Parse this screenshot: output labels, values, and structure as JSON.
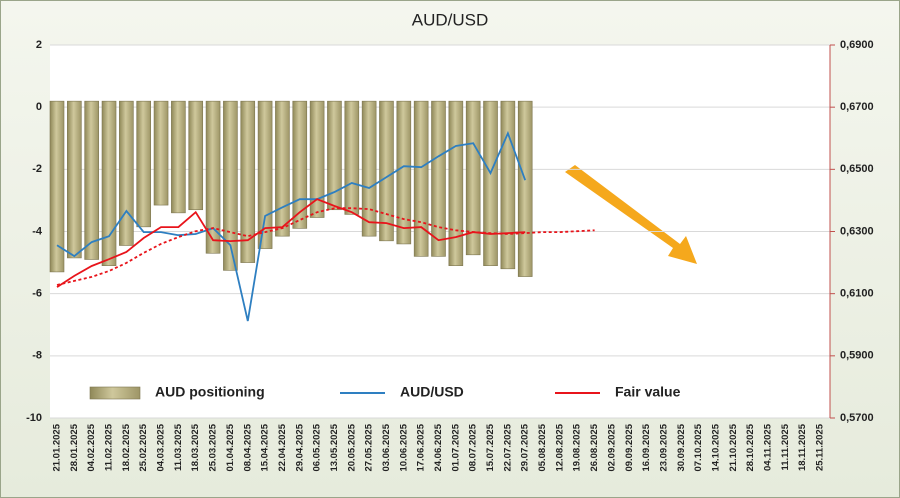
{
  "chart_data": {
    "type": "bar-line",
    "title": "AUD/USD",
    "categories": [
      "21.01.2025",
      "28.01.2025",
      "04.02.2025",
      "11.02.2025",
      "18.02.2025",
      "25.02.2025",
      "04.03.2025",
      "11.03.2025",
      "18.03.2025",
      "25.03.2025",
      "01.04.2025",
      "08.04.2025",
      "15.04.2025",
      "22.04.2025",
      "29.04.2025",
      "06.05.2025",
      "13.05.2025",
      "20.05.2025",
      "27.05.2025",
      "03.06.2025",
      "10.06.2025",
      "17.06.2025",
      "24.06.2025",
      "01.07.2025",
      "08.07.2025",
      "15.07.2025",
      "22.07.2025",
      "29.07.2025",
      "05.08.2025",
      "12.08.2025",
      "19.08.2025",
      "26.08.2025",
      "02.09.2025",
      "09.09.2025",
      "16.09.2025",
      "23.09.2025",
      "30.09.2025",
      "07.10.2025",
      "14.10.2025",
      "21.10.2025",
      "28.10.2025",
      "04.11.2025",
      "11.11.2025",
      "18.11.2025",
      "25.11.2025"
    ],
    "ylim": [
      -10,
      2
    ],
    "yticks": [
      2,
      0,
      -2,
      -4,
      -6,
      -8,
      -10
    ],
    "y2lim": [
      0.57,
      0.69
    ],
    "y2ticks": [
      {
        "value": 0.69,
        "label": "0,6900"
      },
      {
        "value": 0.67,
        "label": "0,6700"
      },
      {
        "value": 0.65,
        "label": "0,6500"
      },
      {
        "value": 0.63,
        "label": "0,6300"
      },
      {
        "value": 0.61,
        "label": "0,6100"
      },
      {
        "value": 0.59,
        "label": "0,5900"
      },
      {
        "value": 0.57,
        "label": "0,5700"
      }
    ],
    "grid": true,
    "legend": "bottom",
    "series": [
      {
        "name": "AUD positioning",
        "kind": "bar",
        "color": "#b3ab7a",
        "axis": "y",
        "values": [
          -5.3,
          -4.85,
          -4.9,
          -5.1,
          -4.45,
          -3.85,
          -3.15,
          -3.4,
          -3.3,
          -4.7,
          -5.25,
          -5.0,
          -4.55,
          -4.15,
          -3.9,
          -3.55,
          -3.3,
          -3.45,
          -4.15,
          -4.3,
          -4.4,
          -4.8,
          -4.8,
          -5.1,
          -4.75,
          -5.1,
          -5.2,
          -5.45,
          null,
          null,
          null,
          null,
          null,
          null,
          null,
          null,
          null,
          null,
          null,
          null,
          null,
          null,
          null,
          null,
          null
        ]
      },
      {
        "name": "AUD/USD",
        "kind": "line",
        "color": "#2e7fc1",
        "axis": "y2",
        "values": [
          0.6256,
          0.6221,
          0.6266,
          0.6285,
          0.6366,
          0.6298,
          0.6298,
          0.6288,
          0.6292,
          0.6311,
          0.6256,
          0.6012,
          0.635,
          0.6378,
          0.6404,
          0.6404,
          0.6427,
          0.6456,
          0.644,
          0.6475,
          0.651,
          0.6507,
          0.6542,
          0.6575,
          0.6584,
          0.6488,
          0.6616,
          0.6465,
          null,
          null,
          null,
          null,
          null,
          null,
          null,
          null,
          null,
          null,
          null,
          null,
          null,
          null,
          null,
          null,
          null
        ]
      },
      {
        "name": "Fair value",
        "kind": "line",
        "color": "#e8141b",
        "axis": "y2",
        "values": [
          0.6121,
          0.6157,
          0.6189,
          0.6211,
          0.6234,
          0.6279,
          0.6314,
          0.6314,
          0.6362,
          0.6272,
          0.6269,
          0.6272,
          0.6311,
          0.6314,
          0.6362,
          0.6404,
          0.6382,
          0.6362,
          0.633,
          0.6327,
          0.6311,
          0.6314,
          0.6272,
          0.6282,
          0.6298,
          0.6292,
          0.6295,
          0.6298,
          null,
          null,
          null,
          null,
          null,
          null,
          null,
          null,
          null,
          null,
          null,
          null,
          null,
          null,
          null,
          null,
          null
        ]
      },
      {
        "kind": "line",
        "dashed": true,
        "color": "#e8141b",
        "axis": "y2",
        "values": [
          0.6128,
          0.6141,
          0.6154,
          0.6173,
          0.6199,
          0.6231,
          0.626,
          0.6282,
          0.6301,
          0.6311,
          0.6298,
          0.6285,
          0.6298,
          0.6311,
          0.6337,
          0.6362,
          0.6375,
          0.6375,
          0.6372,
          0.6356,
          0.634,
          0.633,
          0.6314,
          0.6304,
          0.6298,
          0.6295,
          0.6292,
          0.6295,
          0.6298,
          0.6298,
          0.6301,
          0.6304,
          null,
          null,
          null,
          null,
          null,
          null,
          null,
          null,
          null,
          null,
          null,
          null,
          null
        ]
      }
    ]
  }
}
